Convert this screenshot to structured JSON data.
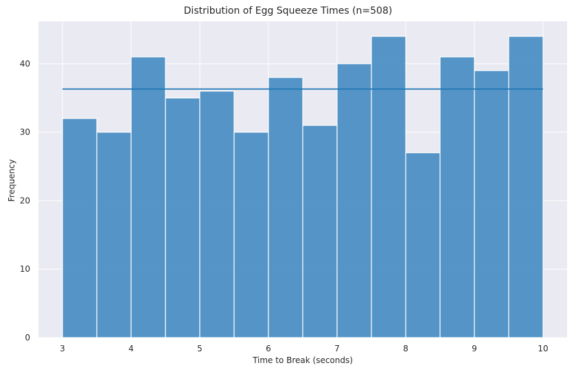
{
  "chart_data": {
    "type": "bar",
    "title": "Distribution of Egg Squeeze Times (n=508)",
    "xlabel": "Time to Break (seconds)",
    "ylabel": "Frequency",
    "xlim": [
      2.65,
      10.35
    ],
    "ylim": [
      0,
      46.2
    ],
    "x_ticks": [
      3,
      4,
      5,
      6,
      7,
      8,
      9,
      10
    ],
    "y_ticks": [
      0,
      10,
      20,
      30,
      40
    ],
    "bins": [
      {
        "start": 3.0,
        "end": 3.5,
        "value": 32
      },
      {
        "start": 3.5,
        "end": 4.0,
        "value": 30
      },
      {
        "start": 4.0,
        "end": 4.5,
        "value": 41
      },
      {
        "start": 4.5,
        "end": 5.0,
        "value": 35
      },
      {
        "start": 5.0,
        "end": 5.5,
        "value": 36
      },
      {
        "start": 5.5,
        "end": 6.0,
        "value": 30
      },
      {
        "start": 6.0,
        "end": 6.5,
        "value": 38
      },
      {
        "start": 6.5,
        "end": 7.0,
        "value": 31
      },
      {
        "start": 7.0,
        "end": 7.5,
        "value": 40
      },
      {
        "start": 7.5,
        "end": 8.0,
        "value": 44
      },
      {
        "start": 8.0,
        "end": 8.5,
        "value": 27
      },
      {
        "start": 8.5,
        "end": 9.0,
        "value": 41
      },
      {
        "start": 9.0,
        "end": 9.5,
        "value": 39
      },
      {
        "start": 9.5,
        "end": 10.0,
        "value": 44
      }
    ],
    "reference_line": {
      "y": 36.3,
      "x_start": 3.0,
      "x_end": 10.0
    },
    "grid": true,
    "colors": {
      "bar": "#4c8fc4",
      "bar_edge": "#ffffff",
      "line": "#1f77b4",
      "plot_bg": "#eaeaf2",
      "grid": "#ffffff"
    }
  }
}
